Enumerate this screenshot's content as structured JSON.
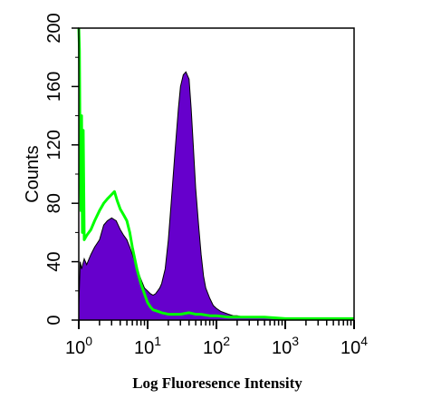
{
  "chart_data": {
    "type": "area",
    "title": "",
    "xlabel": "Log Fluoresence Intensity",
    "ylabel": "Counts",
    "x_scale": "log",
    "xlim": [
      1,
      10000
    ],
    "ylim": [
      0,
      200
    ],
    "grid": false,
    "x_ticks": [
      {
        "value": 1,
        "base": "10",
        "exp": "0"
      },
      {
        "value": 10,
        "base": "10",
        "exp": "1"
      },
      {
        "value": 100,
        "base": "10",
        "exp": "2"
      },
      {
        "value": 1000,
        "base": "10",
        "exp": "3"
      },
      {
        "value": 10000,
        "base": "10",
        "exp": "4"
      }
    ],
    "y_ticks": [
      0,
      40,
      80,
      120,
      160,
      200
    ],
    "colors": {
      "filled": "#6600cc",
      "outline": "#00ff00"
    },
    "series": [
      {
        "style": "filled",
        "x": [
          1.0,
          1.05,
          1.1,
          1.2,
          1.3,
          1.5,
          1.7,
          2.0,
          2.3,
          2.6,
          3.0,
          3.5,
          4.0,
          4.5,
          5.0,
          5.5,
          6.0,
          7.0,
          8.0,
          9.0,
          10,
          11,
          12,
          13,
          14,
          15,
          16,
          18,
          20,
          22,
          25,
          28,
          30,
          33,
          36,
          40,
          43,
          46,
          50,
          55,
          60,
          65,
          70,
          80,
          90,
          100,
          115,
          130,
          150,
          175,
          200,
          250,
          300,
          400,
          600,
          1000,
          2000,
          5000,
          10000
        ],
        "y": [
          10,
          40,
          35,
          42,
          38,
          45,
          50,
          55,
          65,
          68,
          70,
          68,
          62,
          58,
          55,
          50,
          45,
          35,
          28,
          22,
          20,
          18,
          17,
          18,
          20,
          22,
          25,
          35,
          55,
          80,
          115,
          145,
          160,
          168,
          170,
          165,
          145,
          120,
          90,
          65,
          45,
          30,
          22,
          15,
          10,
          8,
          6,
          5,
          4,
          3,
          3,
          2,
          2,
          2,
          2,
          1,
          1,
          1,
          1
        ]
      },
      {
        "style": "outline",
        "x": [
          1.0,
          1.02,
          1.04,
          1.06,
          1.08,
          1.1,
          1.13,
          1.16,
          1.2,
          1.3,
          1.4,
          1.5,
          1.7,
          2.0,
          2.3,
          2.6,
          3.0,
          3.3,
          3.6,
          4.0,
          4.5,
          5.0,
          5.5,
          6.0,
          7.0,
          8.0,
          9.0,
          10,
          11,
          12,
          14,
          16,
          20,
          25,
          30,
          40,
          50,
          60,
          80,
          100,
          150,
          200,
          300,
          500,
          1000,
          2000,
          5000,
          10000
        ],
        "y": [
          200,
          185,
          130,
          95,
          75,
          140,
          60,
          130,
          55,
          58,
          60,
          62,
          68,
          75,
          80,
          83,
          86,
          88,
          82,
          76,
          72,
          68,
          60,
          50,
          35,
          25,
          18,
          12,
          9,
          7,
          6,
          5,
          4,
          4,
          4,
          5,
          4,
          4,
          3,
          3,
          2,
          2,
          2,
          2,
          1,
          1,
          1,
          1
        ]
      }
    ]
  }
}
